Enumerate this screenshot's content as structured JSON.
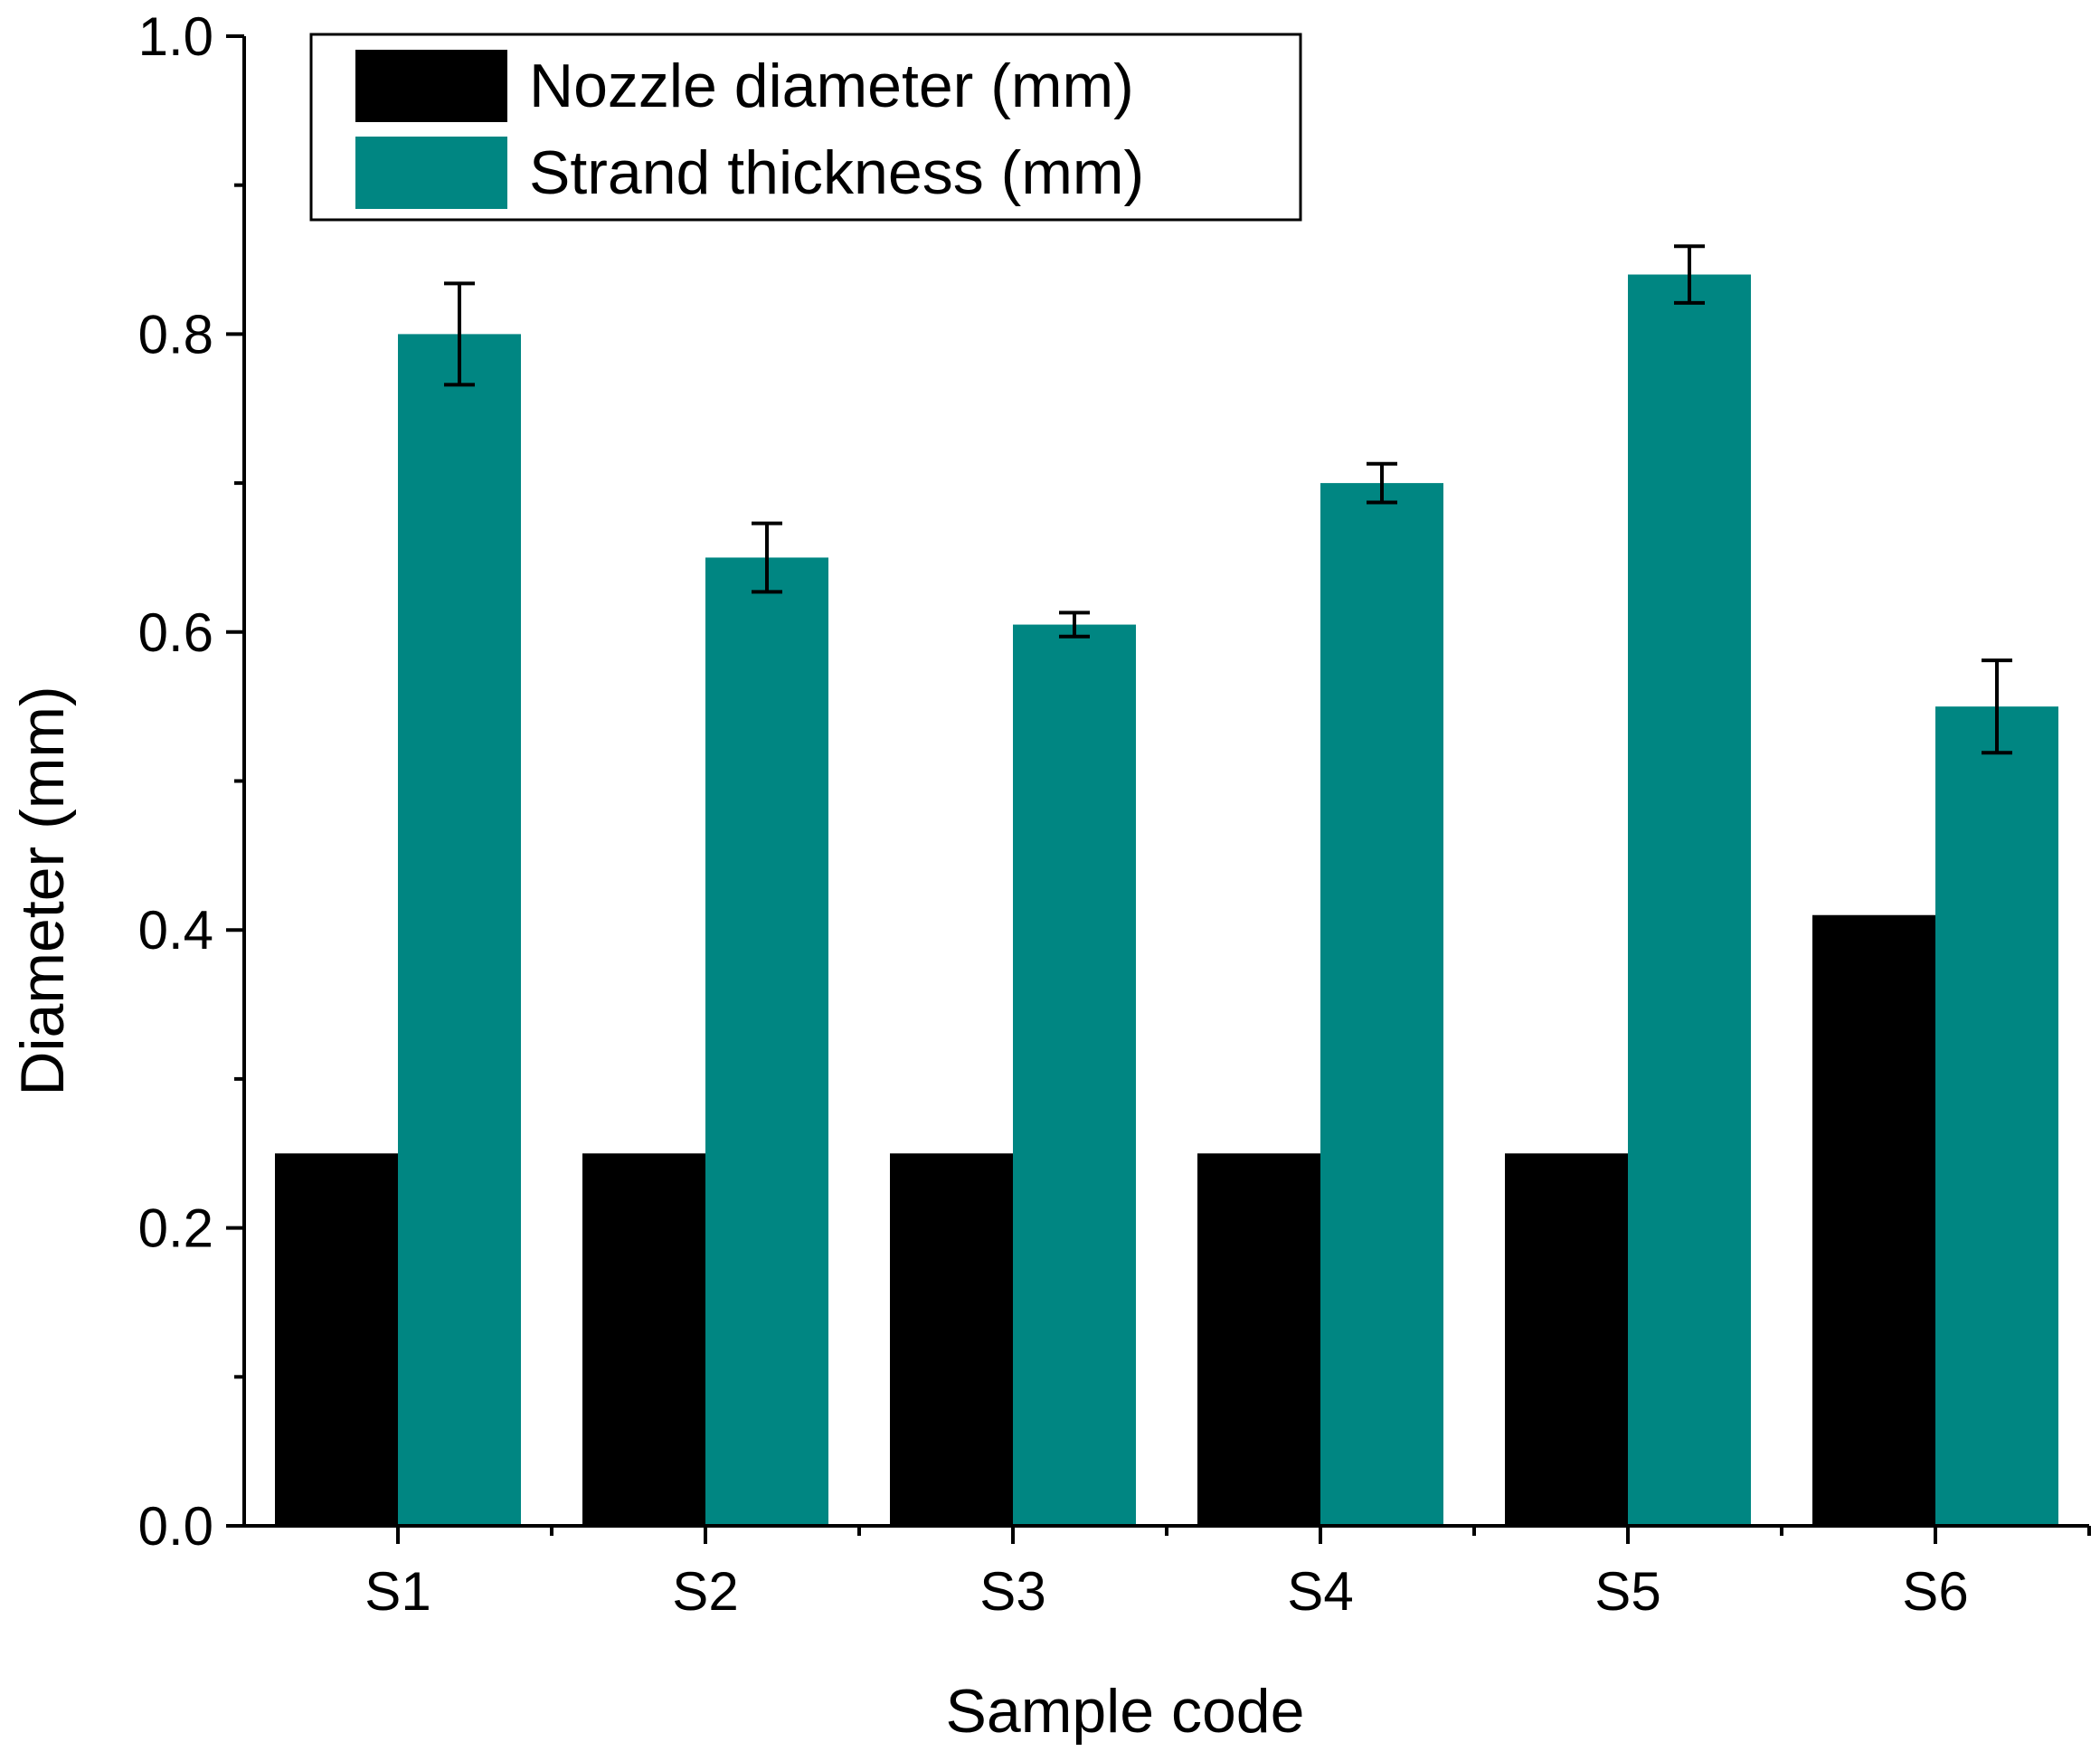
{
  "chart_data": {
    "type": "bar",
    "title": "",
    "xlabel": "Sample code",
    "ylabel": "Diameter (mm)",
    "categories": [
      "S1",
      "S2",
      "S3",
      "S4",
      "S5",
      "S6"
    ],
    "ylim": [
      0.0,
      1.0
    ],
    "yticks": [
      0.0,
      0.2,
      0.4,
      0.6,
      0.8,
      1.0
    ],
    "ytick_labels": [
      "0.0",
      "0.2",
      "0.4",
      "0.6",
      "0.8",
      "1.0"
    ],
    "yminor_ticks": [
      0.1,
      0.3,
      0.5,
      0.7,
      0.9
    ],
    "grid": false,
    "legend_position": "top-left",
    "series": [
      {
        "name": "Nozzle diameter (mm)",
        "color": "#000000",
        "values": [
          0.25,
          0.25,
          0.25,
          0.25,
          0.25,
          0.41
        ],
        "errors": null
      },
      {
        "name": "Strand thickness (mm)",
        "color": "#008682",
        "values": [
          0.8,
          0.65,
          0.605,
          0.7,
          0.84,
          0.55
        ],
        "errors": [
          0.034,
          0.023,
          0.008,
          0.013,
          0.019,
          0.031
        ]
      }
    ]
  }
}
